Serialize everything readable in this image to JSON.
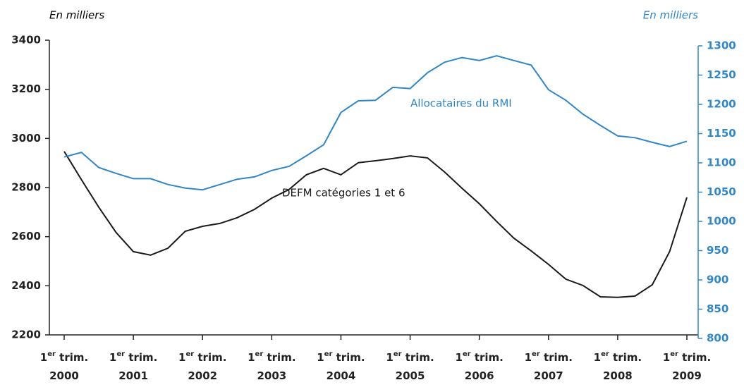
{
  "chart_data": {
    "type": "line",
    "y_axis_label": "En milliers",
    "y2_axis_label": "En milliers",
    "categories": [
      "1er trim. 2000",
      null,
      null,
      null,
      "1er trim. 2001",
      null,
      null,
      null,
      "1er trim. 2002",
      null,
      null,
      null,
      "1er trim. 2003",
      null,
      null,
      null,
      "1er trim. 2004",
      null,
      null,
      null,
      "1er trim. 2005",
      null,
      null,
      null,
      "1er trim. 2006",
      null,
      null,
      null,
      "1er trim. 2007",
      null,
      null,
      null,
      "1er trim. 2008",
      null,
      null,
      null,
      "1er trim. 2009"
    ],
    "series": [
      {
        "name": "DEFM catégories 1 et 6",
        "color": "#1a1a1a",
        "axis": "y",
        "values": [
          2947,
          2832,
          2720,
          2617,
          2539,
          2525,
          2553,
          2622,
          2642,
          2654,
          2677,
          2711,
          2757,
          2792,
          2852,
          2878,
          2852,
          2901,
          2909,
          2918,
          2929,
          2921,
          2863,
          2797,
          2734,
          2662,
          2594,
          2542,
          2487,
          2427,
          2401,
          2355,
          2353,
          2358,
          2404,
          2539,
          2760
        ]
      },
      {
        "name": "Allocataires du RMI",
        "color": "#2f86c8",
        "axis": "y2",
        "values": [
          1110,
          1118,
          1092,
          1082,
          1073,
          1073,
          1063,
          1057,
          1054,
          1063,
          1072,
          1076,
          1087,
          1094,
          1112,
          1131,
          1186,
          1206,
          1207,
          1229,
          1227,
          1254,
          1272,
          1280,
          1275,
          1283,
          1275,
          1267,
          1225,
          1207,
          1183,
          1164,
          1146,
          1143,
          1135,
          1128,
          1137
        ]
      }
    ],
    "ylim": [
      2200,
      3400
    ],
    "yticks": [
      2200,
      2400,
      2600,
      2800,
      3000,
      3200,
      3400
    ],
    "y2lim": [
      800,
      1300
    ],
    "y2ticks": [
      800,
      850,
      900,
      950,
      1000,
      1050,
      1100,
      1150,
      1200,
      1250,
      1300
    ],
    "y2color": "#2f86c8",
    "grid": false
  }
}
